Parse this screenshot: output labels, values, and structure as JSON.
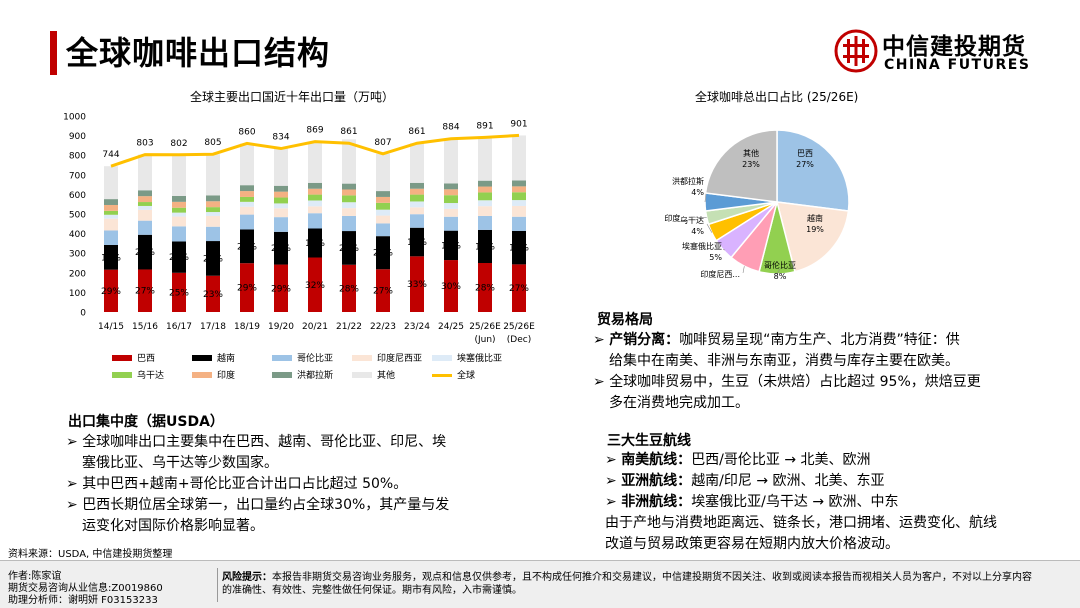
{
  "page": {
    "title": "全球咖啡出口结构"
  },
  "logo": {
    "cn": "中信建投期货",
    "en": "CHINA FUTURES"
  },
  "chart_data": [
    {
      "type": "bar",
      "title": "全球主要出口国近十年出口量（万吨）",
      "categories": [
        "14/15",
        "15/16",
        "16/17",
        "17/18",
        "18/19",
        "19/20",
        "20/21",
        "21/22",
        "22/23",
        "23/24",
        "24/25",
        "25/26E (Jun)",
        "25/26E (Dec)"
      ],
      "cat_lines": [
        [
          "14/15"
        ],
        [
          "15/16"
        ],
        [
          "16/17"
        ],
        [
          "17/18"
        ],
        [
          "18/19"
        ],
        [
          "19/20"
        ],
        [
          "20/21"
        ],
        [
          "21/22"
        ],
        [
          "22/23"
        ],
        [
          "23/24"
        ],
        [
          "24/25"
        ],
        [
          "25/26E",
          "(Jun)"
        ],
        [
          "25/26E",
          "(Dec)"
        ]
      ],
      "ylim": [
        0,
        1000
      ],
      "yticks": [
        "0",
        "100",
        "200",
        "300",
        "400",
        "500",
        "600",
        "700",
        "800",
        "900",
        "1000"
      ],
      "stacked": true,
      "series": [
        {
          "name": "巴西",
          "color": "#c00000",
          "values": [
            216,
            217,
            200,
            185,
            249,
            242,
            278,
            241,
            218,
            284,
            265,
            250,
            243
          ],
          "labels": [
            "29%",
            "27%",
            "25%",
            "23%",
            "29%",
            "29%",
            "32%",
            "28%",
            "27%",
            "33%",
            "30%",
            "28%",
            "27%"
          ]
        },
        {
          "name": "越南",
          "color": "#000000",
          "values": [
            126,
            177,
            160,
            177,
            172,
            167,
            148,
            172,
            169,
            146,
            150,
            169,
            171
          ],
          "labels": [
            "17%",
            "22%",
            "20%",
            "22%",
            "20%",
            "20%",
            "17%",
            "20%",
            "21%",
            "17%",
            "17%",
            "19%",
            "19%"
          ]
        },
        {
          "name": "哥伦比亚",
          "color": "#9dc3e6",
          "values": [
            74,
            72,
            77,
            73,
            76,
            75,
            78,
            77,
            65,
            69,
            71,
            71,
            72
          ],
          "labels": [
            "10%",
            "9%",
            "10%",
            "9%",
            "9%",
            "9%",
            "9%",
            "9%",
            "8%",
            "8%",
            "8%",
            "8%",
            "8%"
          ]
        },
        {
          "name": "印度尼西亚",
          "color": "#fbe5d6",
          "values": [
            60,
            55,
            50,
            55,
            40,
            45,
            35,
            40,
            40,
            35,
            40,
            50,
            55
          ],
          "labels": []
        },
        {
          "name": "埃塞俄比亚",
          "color": "#deebf7",
          "values": [
            20,
            20,
            20,
            20,
            25,
            25,
            30,
            30,
            30,
            30,
            30,
            30,
            30
          ],
          "labels": []
        },
        {
          "name": "乌干达",
          "color": "#92d050",
          "values": [
            20,
            20,
            25,
            25,
            25,
            30,
            30,
            35,
            35,
            35,
            40,
            40,
            40
          ],
          "labels": []
        },
        {
          "name": "印度",
          "color": "#f4b183",
          "values": [
            30,
            30,
            30,
            30,
            30,
            30,
            30,
            30,
            30,
            30,
            30,
            30,
            30
          ],
          "labels": []
        },
        {
          "name": "洪都拉斯",
          "color": "#7b9a87",
          "values": [
            30,
            30,
            30,
            30,
            30,
            30,
            30,
            30,
            30,
            30,
            30,
            30,
            30
          ],
          "labels": []
        },
        {
          "name": "其他",
          "color": "#e8e8e8",
          "values": [
            168,
            182,
            210,
            210,
            213,
            190,
            210,
            226,
            190,
            202,
            228,
            221,
            230
          ],
          "labels": []
        }
      ],
      "line": {
        "name": "全球",
        "color": "#ffc000",
        "values": [
          744,
          803,
          802,
          805,
          860,
          834,
          869,
          861,
          807,
          861,
          884,
          891,
          901
        ]
      }
    },
    {
      "type": "pie",
      "title": "全球咖啡总出口占比 (25/26E)",
      "slices": [
        {
          "name": "巴西",
          "pct": 27,
          "value": "27%",
          "color": "#9dc3e6"
        },
        {
          "name": "越南",
          "pct": 19,
          "value": "19%",
          "color": "#fbe5d6"
        },
        {
          "name": "哥伦比亚",
          "pct": 8,
          "value": "8%",
          "color": "#92d050"
        },
        {
          "name": "印度尼西...",
          "pct": 7,
          "value": "",
          "color": "#ff9eb5"
        },
        {
          "name": "埃塞俄比亚",
          "pct": 5,
          "value": "5%",
          "color": "#d9b3ff"
        },
        {
          "name": "乌干达",
          "pct": 4,
          "value": "4%",
          "color": "#ffc000"
        },
        {
          "name": "印度...",
          "pct": 3,
          "value": "",
          "color": "#c5e0b4"
        },
        {
          "name": "洪都拉斯",
          "pct": 4,
          "value": "4%",
          "color": "#5b9bd5"
        },
        {
          "name": "其他",
          "pct": 23,
          "value": "23%",
          "color": "#bfbfbf"
        }
      ]
    }
  ],
  "export_conc": {
    "heading": "出口集中度（据USDA）",
    "bullets": [
      [
        "全球咖啡出口主要集中在巴西、越南、哥伦比亚、印尼、埃",
        "塞俄比亚、乌干达等少数国家。"
      ],
      [
        "其中巴西+越南+哥伦比亚合计出口占比超过 50%。"
      ],
      [
        "巴西长期位居全球第一，出口量约占全球30%，其产量与发",
        "运变化对国际价格影响显著。"
      ]
    ]
  },
  "trade": {
    "heading": "贸易格局",
    "b1_bold": "产销分离：",
    "b1_lines": [
      "咖啡贸易呈现“南方生产、北方消费”特征：供",
      "给集中在南美、非洲与东南亚，消费与库存主要在欧美。"
    ],
    "b2_lines": [
      "全球咖啡贸易中，生豆（未烘焙）占比超过 95%，烘焙豆更",
      "多在消费地完成加工。"
    ]
  },
  "routes": {
    "heading": "三大生豆航线",
    "items": [
      {
        "bold": "南美航线：",
        "text": "巴西/哥伦比亚 → 北美、欧洲"
      },
      {
        "bold": "亚洲航线：",
        "text": "越南/印尼 → 欧洲、北美、东亚"
      },
      {
        "bold": "非洲航线：",
        "text": "埃塞俄比亚/乌干达 → 欧洲、中东"
      }
    ],
    "summary": [
      "由于产地与消费地距离远、链条长，港口拥堵、运费变化、航线",
      "改道与贸易政策更容易在短期内放大价格波动。"
    ]
  },
  "source": "资料来源：USDA, 中信建投期货整理",
  "footer": {
    "author": "作者:陈家谊",
    "license": "期货交易咨询从业信息:Z0019860",
    "assistant": "助理分析师：谢明妍 F03153233",
    "risk_label": "风险提示：",
    "risk_line1": "本报告非期货交易咨询业务服务，观点和信息仅供参考，且不构成任何推介和交易建议，中信建投期货不因关注、收到或阅读本报告而视相关人员为客户，不对以上分享内容",
    "risk_line2": "的准确性、有效性、完整性做任何保证。期市有风险，入市需谨慎。"
  }
}
